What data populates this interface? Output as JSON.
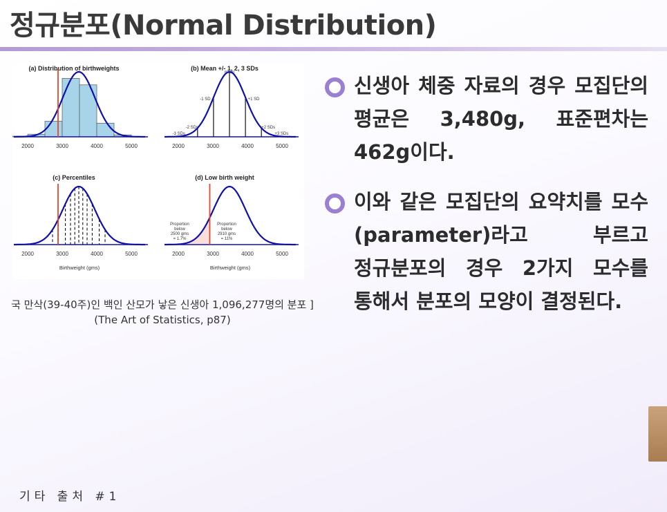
{
  "slide": {
    "title": "정규분포(Normal Distribution)",
    "footer": "기타 출처 #1",
    "accent_color": "#9b7fd1"
  },
  "figure": {
    "caption_line1": "국 만삭(39-40주)인 백인 산모가 낳은 신생아 1,096,277명의 분포 ]",
    "caption_line2": "(The Art of Statistics, p87)",
    "panels": [
      {
        "title": "(a) Distribution of birthweights"
      },
      {
        "title": "(b) Mean +/- 1, 2, 3 SDs",
        "labels": {
          "mean": "mean",
          "minus1": "-1 SD",
          "plus1": "+1 SD",
          "minus2": "-2 SDs",
          "plus2": "+2 SDs",
          "minus3": "-3 SDs",
          "plus3": "+3 SDs"
        }
      },
      {
        "title": "(c) Percentiles",
        "xlabel": "Birthweight (gms)"
      },
      {
        "title": "(d) Low birth weight",
        "xlabel": "Birthweight (gms)",
        "left_note": [
          "Proportion",
          "below",
          "2500 gms",
          "= 1.7%"
        ],
        "right_note": [
          "Proportion",
          "below",
          "2910 gms",
          "= 11%"
        ]
      }
    ],
    "x_ticks": [
      "2000",
      "3000",
      "4000",
      "5000"
    ],
    "curve_color": "#1010a8",
    "reference_line_color": "#e0482a",
    "histogram_fill": "#a8d4ea"
  },
  "bullets": [
    {
      "text": "신생아 체중 자료의 경우 모집단의 평균은 3,480g, 표준편차는 462g이다."
    },
    {
      "text": "이와 같은 모집단의 요약치를 모수(parameter)라고 부르고 정규분포의 경우 2가지 모수를 통해서 분포의 모양이 결정된다."
    }
  ]
}
